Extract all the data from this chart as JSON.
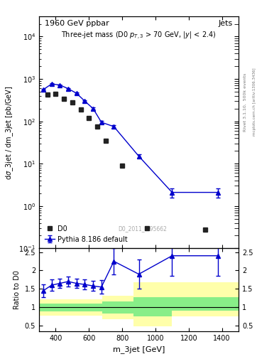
{
  "title_left": "1960 GeV ppbar",
  "title_right": "Jets",
  "xlabel": "m_3jet [GeV]",
  "ylabel_main": "dσ_3jet / dm_3jet [pb/GeV]",
  "ylabel_ratio": "Ratio to D0",
  "watermark": "D0_2011_I895662",
  "d0_x": [
    350,
    400,
    450,
    500,
    550,
    600,
    650,
    700,
    800,
    950,
    1300
  ],
  "d0_y": [
    420,
    450,
    340,
    280,
    190,
    120,
    75,
    35,
    9.0,
    0.3,
    0.28
  ],
  "py_x": [
    325,
    375,
    425,
    475,
    525,
    575,
    625,
    675,
    750,
    900,
    1100,
    1375
  ],
  "py_y": [
    560,
    760,
    720,
    590,
    460,
    300,
    200,
    95,
    75,
    15,
    2.1,
    2.1
  ],
  "py_yerr": [
    20,
    30,
    25,
    22,
    20,
    12,
    10,
    7,
    6,
    1.5,
    0.5,
    0.5
  ],
  "ratio_x": [
    325,
    375,
    425,
    475,
    525,
    575,
    625,
    675,
    750,
    900,
    1100,
    1375
  ],
  "ratio_y": [
    1.45,
    1.6,
    1.65,
    1.7,
    1.65,
    1.62,
    1.58,
    1.55,
    2.25,
    1.9,
    2.4,
    2.4
  ],
  "ratio_yerr": [
    0.18,
    0.15,
    0.13,
    0.13,
    0.13,
    0.13,
    0.13,
    0.18,
    0.35,
    0.4,
    0.55,
    0.55
  ],
  "yb1_edges": [
    300,
    680,
    870,
    1100,
    1500
  ],
  "yb1_lo": [
    0.78,
    0.68,
    0.48,
    0.75
  ],
  "yb1_hi": [
    1.22,
    1.32,
    1.68,
    1.68
  ],
  "gb1_edges": [
    300,
    680,
    870,
    1100,
    1500
  ],
  "gb1_lo": [
    0.89,
    0.83,
    0.75,
    0.9
  ],
  "gb1_hi": [
    1.11,
    1.15,
    1.27,
    1.27
  ],
  "xlim": [
    300,
    1500
  ],
  "ylim_main": [
    0.1,
    30000
  ],
  "ylim_ratio": [
    0.35,
    2.6
  ],
  "color_d0": "#222222",
  "color_py": "#0000cc",
  "color_yellow": "#ffffaa",
  "color_green": "#88ee88"
}
